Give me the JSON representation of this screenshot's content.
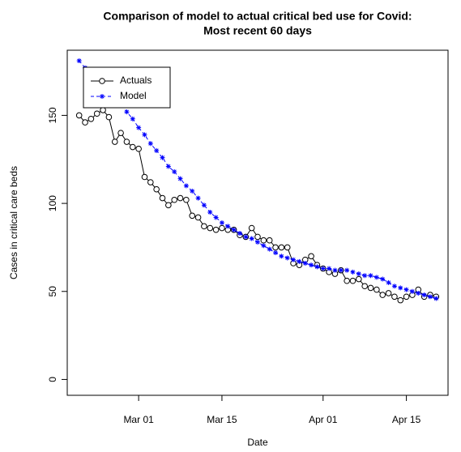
{
  "chart_data": {
    "type": "line",
    "title": [
      "Comparison of model to actual critical bed use for Covid:",
      "Most recent 60 days"
    ],
    "x_label": "Date",
    "y_label": "Cases in critical care beds",
    "x": [
      "02-19",
      "02-20",
      "02-21",
      "02-22",
      "02-23",
      "02-24",
      "02-25",
      "02-26",
      "02-27",
      "02-28",
      "03-01",
      "03-02",
      "03-03",
      "03-04",
      "03-05",
      "03-06",
      "03-07",
      "03-08",
      "03-09",
      "03-10",
      "03-11",
      "03-12",
      "03-13",
      "03-14",
      "03-15",
      "03-16",
      "03-17",
      "03-18",
      "03-19",
      "03-20",
      "03-21",
      "03-22",
      "03-23",
      "03-24",
      "03-25",
      "03-26",
      "03-27",
      "03-28",
      "03-29",
      "03-30",
      "03-31",
      "04-01",
      "04-02",
      "04-03",
      "04-04",
      "04-05",
      "04-06",
      "04-07",
      "04-08",
      "04-09",
      "04-10",
      "04-11",
      "04-12",
      "04-13",
      "04-14",
      "04-15",
      "04-16",
      "04-17",
      "04-18",
      "04-19",
      "04-20"
    ],
    "series": [
      {
        "name": "Actuals",
        "color": "#000000",
        "values": [
          150,
          146,
          148,
          151,
          153,
          149,
          135,
          140,
          135,
          132,
          131,
          115,
          112,
          108,
          103,
          99,
          102,
          103,
          102,
          93,
          92,
          87,
          86,
          85,
          86,
          85,
          85,
          82,
          81,
          86,
          81,
          79,
          79,
          75,
          75,
          75,
          66,
          65,
          68,
          70,
          65,
          63,
          61,
          60,
          62,
          56,
          56,
          57,
          53,
          52,
          51,
          48,
          49,
          47,
          45,
          47,
          48,
          51,
          47,
          48,
          47
        ]
      },
      {
        "name": "Model",
        "color": "#0000ff",
        "values": [
          181,
          177,
          172,
          168,
          165,
          162,
          160,
          157,
          152,
          148,
          143,
          139,
          134,
          130,
          126,
          121,
          118,
          114,
          110,
          107,
          103,
          99,
          95,
          92,
          89,
          87,
          85,
          83,
          81,
          80,
          78,
          76,
          74,
          72,
          70,
          69,
          68,
          67,
          66,
          65,
          64,
          63,
          63,
          62,
          62,
          62,
          61,
          60,
          59,
          59,
          58,
          57,
          55,
          53,
          52,
          51,
          50,
          49,
          48,
          47,
          46
        ]
      }
    ],
    "xlim": [
      "02-17",
      "04-22"
    ],
    "xticks": [
      {
        "value": "03-01",
        "label": "Mar 01"
      },
      {
        "value": "03-15",
        "label": "Mar 15"
      },
      {
        "value": "04-01",
        "label": "Apr 01"
      },
      {
        "value": "04-15",
        "label": "Apr 15"
      }
    ],
    "ylim": [
      -9,
      187
    ],
    "yticks": [
      0,
      50,
      100,
      150
    ],
    "legend": "topleft",
    "grid": false
  }
}
